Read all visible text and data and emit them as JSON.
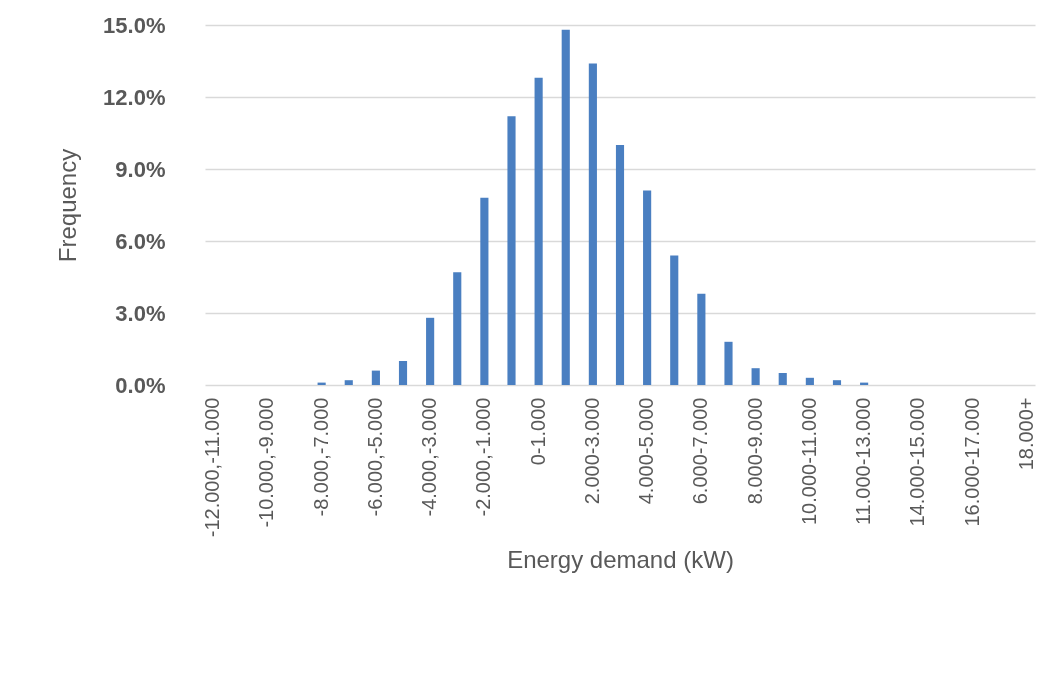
{
  "chart_data": {
    "type": "bar",
    "xlabel": "Energy demand (kW)",
    "ylabel": "Frequency",
    "categories": [
      "-12.000,-11.000",
      null,
      "-10.000,-9.000",
      null,
      "-8.000,-7.000",
      null,
      "-6.000,-5.000",
      null,
      "-4.000,-3.000",
      null,
      "-2.000,-1.000",
      null,
      "0-1.000",
      null,
      "2.000-3.000",
      null,
      "4.000-5.000",
      null,
      "6.000-7.000",
      null,
      "8.000-9.000",
      null,
      "10.000-11.000",
      null,
      "11.000-13.000",
      null,
      "14.000-15.000",
      null,
      "16.000-17.000",
      null,
      "18.000+"
    ],
    "values": [
      0,
      0,
      0,
      0,
      0.1,
      0.2,
      0.6,
      1.0,
      2.8,
      4.7,
      7.8,
      11.2,
      12.8,
      14.8,
      13.4,
      10.0,
      8.1,
      5.4,
      3.8,
      1.8,
      0.7,
      0.5,
      0.3,
      0.2,
      0.1,
      0,
      0,
      0,
      0,
      0,
      0
    ],
    "color": "#4a7fc1",
    "ylim": [
      0,
      15
    ],
    "yticks": [
      {
        "value": 0,
        "label": "0.0%"
      },
      {
        "value": 3,
        "label": "3.0%"
      },
      {
        "value": 6,
        "label": "6.0%"
      },
      {
        "value": 9,
        "label": "9.0%"
      },
      {
        "value": 12,
        "label": "12.0%"
      },
      {
        "value": 15,
        "label": "15.0%"
      }
    ],
    "grid": "y"
  }
}
